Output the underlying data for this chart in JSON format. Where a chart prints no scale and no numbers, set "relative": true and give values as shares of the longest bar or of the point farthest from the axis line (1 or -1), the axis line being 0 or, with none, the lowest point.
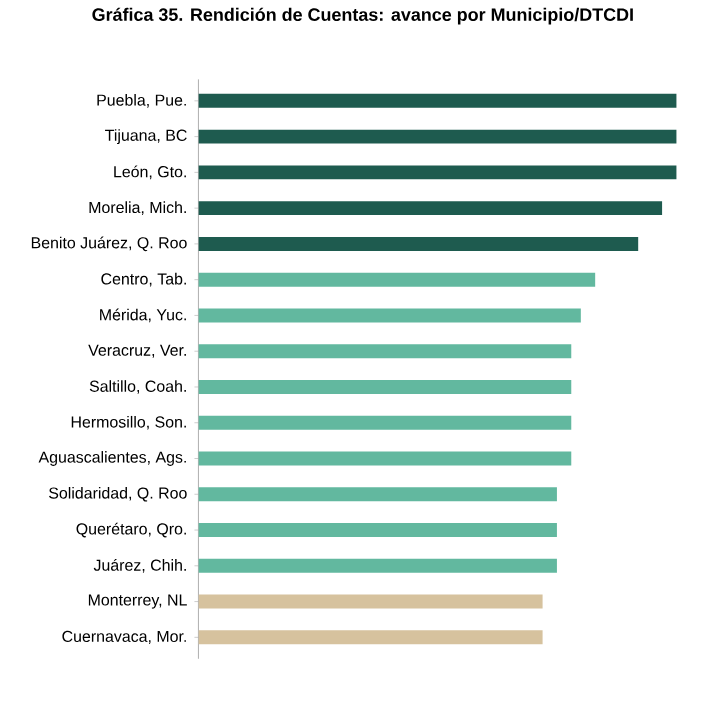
{
  "chart_data": {
    "type": "bar",
    "orientation": "horizontal",
    "relative": true,
    "title": "Gráfica 35. Rendición de Cuentas: avance por Municipio/DTCDI",
    "categories": [
      "Puebla, Pue.",
      "Tijuana, BC",
      "León, Gto.",
      "Morelia, Mich.",
      "Benito Juárez, Q. Roo",
      "Centro, Tab.",
      "Mérida, Yuc.",
      "Veracruz, Ver.",
      "Saltillo, Coah.",
      "Hermosillo, Son.",
      "Aguascalientes, Ags.",
      "Solidaridad, Q. Roo",
      "Querétaro, Qro.",
      "Juárez, Chih.",
      "Monterrey, NL",
      "Cuernavaca, Mor."
    ],
    "values": [
      1,
      1,
      1,
      0.97,
      0.92,
      0.83,
      0.8,
      0.78,
      0.78,
      0.78,
      0.78,
      0.75,
      0.75,
      0.75,
      0.72,
      0.72
    ],
    "colors": [
      "#1e5b4f",
      "#1e5b4f",
      "#1e5b4f",
      "#1e5b4f",
      "#1e5b4f",
      "#62b89f",
      "#62b89f",
      "#62b89f",
      "#62b89f",
      "#62b89f",
      "#62b89f",
      "#62b89f",
      "#62b89f",
      "#62b89f",
      "#d6c29e",
      "#d6c29e"
    ]
  }
}
